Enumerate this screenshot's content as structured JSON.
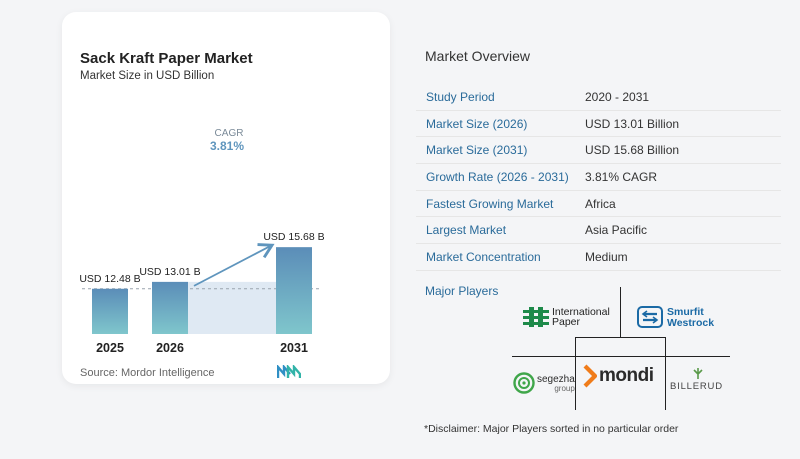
{
  "chart_card": {
    "title": "Sack Kraft Paper Market",
    "subtitle": "Market Size in USD Billion",
    "source": "Source:  Mordor Intelligence"
  },
  "chart_data": {
    "type": "bar",
    "title": "Sack Kraft Paper Market",
    "subtitle": "Market Size in USD Billion",
    "categories": [
      "2025",
      "2026",
      "2031"
    ],
    "values": [
      12.48,
      13.01,
      15.68
    ],
    "data_labels": [
      "USD 12.48 B",
      "USD 13.01 B",
      "USD 15.68 B"
    ],
    "cagr_label": "CAGR",
    "cagr_value": "3.81%",
    "colors": {
      "bar_top": "#5b8db8",
      "bar_bottom": "#7fc6cc",
      "band": "#dfe9f3",
      "arrow": "#5f95bd"
    }
  },
  "overview": {
    "title": "Market Overview",
    "rows": [
      {
        "label": "Study Period",
        "value": "2020 - 2031"
      },
      {
        "label": "Market Size (2026)",
        "value": "USD 13.01 Billion"
      },
      {
        "label": "Market Size (2031)",
        "value": "USD 15.68 Billion"
      },
      {
        "label": "Growth Rate (2026 - 2031)",
        "value": "3.81% CAGR"
      },
      {
        "label": "Fastest Growing Market",
        "value": "Africa"
      },
      {
        "label": "Largest Market",
        "value": "Asia Pacific"
      },
      {
        "label": "Market Concentration",
        "value": "Medium"
      }
    ]
  },
  "players": {
    "title": "Major Players",
    "international_paper_line1": "International",
    "international_paper_line2": "Paper",
    "smurfit_line1": "Smurfit",
    "smurfit_line2": "Westrock",
    "mondi": "mondi",
    "segezha_line1": "segezha",
    "segezha_line2": "group",
    "billerud": "BILLERUD"
  },
  "disclaimer": "*Disclaimer: Major Players sorted in no particular order"
}
